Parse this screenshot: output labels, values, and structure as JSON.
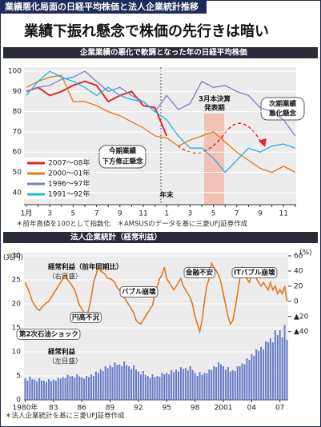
{
  "header": {
    "kicker": "業績悪化局面の日経平均株価と法人企業統計推移",
    "title": "業績下振れ懸念で株価の先行きは暗い"
  },
  "chart_data": [
    {
      "type": "line",
      "title": "企業業績の悪化で軟調となった年の日経平均株価",
      "categories": [
        "1月",
        null,
        "3",
        null,
        "5",
        null,
        "7",
        null,
        "9",
        null,
        "11",
        null,
        "1",
        null,
        "3",
        null,
        "5",
        null,
        "7",
        null,
        "9",
        null,
        "11",
        null
      ],
      "series": [
        {
          "name": "2007～08年",
          "color": "#e6232a",
          "values": [
            90,
            92,
            88,
            90,
            93,
            95,
            93,
            85,
            88,
            90,
            83,
            82,
            68,
            null,
            null,
            null,
            null,
            null,
            null,
            null,
            null,
            null,
            null,
            null
          ]
        },
        {
          "name": "2000～01年",
          "color": "#e07b1e",
          "values": [
            92,
            95,
            97,
            98,
            85,
            85,
            83,
            80,
            78,
            75,
            72,
            68,
            67,
            63,
            66,
            68,
            70,
            65,
            60,
            56,
            52,
            50,
            53,
            50
          ]
        },
        {
          "name": "1996～97年",
          "color": "#7b7fc4",
          "values": [
            90,
            92,
            93,
            96,
            97,
            100,
            95,
            90,
            92,
            88,
            85,
            80,
            88,
            81,
            84,
            95,
            92,
            93,
            90,
            88,
            82,
            80,
            76,
            68
          ]
        },
        {
          "name": "1991～92年",
          "color": "#1fb5e0",
          "values": [
            88,
            95,
            100,
            97,
            95,
            92,
            88,
            92,
            88,
            86,
            85,
            80,
            76,
            68,
            62,
            62,
            57,
            50,
            56,
            62,
            60,
            63,
            64,
            62
          ]
        }
      ],
      "ylim": [
        34,
        102
      ],
      "yticks": [
        40,
        50,
        60,
        70,
        80,
        90,
        100
      ],
      "annotations": [
        "3月本決算",
        "発表期",
        "今期業績",
        "下方修正懸念",
        "次期業績",
        "悪化懸念",
        "年末"
      ],
      "note": "＊前年高値を100として指数化　＊AMSUSのデータを基に三菱UFJ証券作成"
    },
    {
      "type": "bar",
      "title": "法人企業統計（経常利益）",
      "categories": [
        "1980年",
        null,
        null,
        null,
        null,
        null,
        null,
        null,
        null,
        null,
        null,
        null,
        "83",
        null,
        null,
        null,
        null,
        null,
        null,
        null,
        null,
        null,
        null,
        null,
        "86",
        null,
        null,
        null,
        null,
        null,
        null,
        null,
        null,
        null,
        null,
        null,
        "89",
        null,
        null,
        null,
        null,
        null,
        null,
        null,
        null,
        null,
        null,
        null,
        "92",
        null,
        null,
        null,
        null,
        null,
        null,
        null,
        null,
        null,
        null,
        null,
        "95",
        null,
        null,
        null,
        null,
        null,
        null,
        null,
        null,
        null,
        null,
        null,
        "98",
        null,
        null,
        null,
        null,
        null,
        null,
        null,
        null,
        null,
        null,
        null,
        "2001",
        null,
        null,
        null,
        null,
        null,
        null,
        null,
        null,
        null,
        null,
        null,
        "04",
        null,
        null,
        null,
        null,
        null,
        null,
        null,
        null,
        null,
        null,
        null,
        "07",
        null,
        null,
        null
      ],
      "series": [
        {
          "name": "経常利益",
          "scale_note": "（左目盛）",
          "type": "bar",
          "color": "#6b7fc8",
          "values": [
            4.5,
            4.0,
            4.8,
            4.3,
            4.2,
            3.8,
            4.5,
            4.0,
            4.0,
            3.7,
            4.3,
            3.9,
            4.2,
            4.0,
            4.6,
            4.4,
            4.8,
            4.5,
            5.2,
            4.9,
            5.0,
            4.6,
            5.3,
            4.9,
            4.7,
            4.4,
            5.0,
            4.8,
            5.3,
            5.0,
            5.9,
            5.6,
            6.4,
            6.0,
            7.0,
            6.6,
            7.2,
            6.8,
            7.8,
            7.3,
            7.4,
            7.0,
            8.0,
            7.2,
            7.0,
            6.4,
            7.2,
            6.3,
            5.9,
            5.3,
            6.0,
            5.2,
            5.0,
            4.6,
            5.3,
            4.7,
            5.0,
            4.8,
            5.6,
            5.3,
            5.6,
            5.3,
            6.2,
            5.8,
            6.3,
            5.9,
            6.8,
            6.4,
            6.6,
            6.1,
            7.0,
            6.2,
            5.6,
            5.0,
            5.8,
            5.2,
            5.6,
            5.5,
            6.3,
            6.2,
            7.0,
            6.8,
            7.8,
            7.4,
            7.0,
            6.2,
            6.8,
            5.9,
            6.2,
            6.0,
            7.0,
            7.0,
            7.6,
            7.4,
            8.6,
            8.3,
            9.5,
            9.2,
            10.5,
            10.2,
            11.0,
            10.5,
            12.2,
            12.0,
            12.8,
            12.0,
            14.5,
            13.5,
            14.5,
            13.0,
            15.6,
            12.5
          ]
        },
        {
          "name": "経常利益（前年同期比）",
          "scale_note": "（右目盛）",
          "type": "line",
          "axis": "y2",
          "color": "#e07b1e",
          "values": [
            25,
            18,
            10,
            0,
            -5,
            -10,
            -12,
            -8,
            -5,
            -2,
            0,
            5,
            10,
            15,
            20,
            25,
            30,
            35,
            28,
            25,
            20,
            15,
            5,
            -5,
            -10,
            -15,
            -20,
            -10,
            5,
            25,
            35,
            45,
            40,
            38,
            35,
            30,
            30,
            28,
            25,
            18,
            15,
            10,
            5,
            0,
            -5,
            -10,
            -15,
            -25,
            -28,
            -30,
            -25,
            -20,
            -15,
            -10,
            -5,
            10,
            20,
            30,
            35,
            45,
            30,
            25,
            20,
            15,
            20,
            25,
            30,
            20,
            15,
            10,
            5,
            -5,
            -20,
            -30,
            -40,
            -25,
            0,
            20,
            30,
            50,
            45,
            40,
            35,
            25,
            10,
            -5,
            -20,
            -30,
            -25,
            -10,
            10,
            30,
            45,
            40,
            30,
            25,
            35,
            40,
            30,
            25,
            20,
            25,
            20,
            15,
            25,
            15,
            20,
            10,
            15,
            10,
            20,
            0
          ]
        }
      ],
      "ylim": [
        0,
        30
      ],
      "yticks": [
        0,
        5,
        10,
        15,
        20,
        25,
        30
      ],
      "ylabel": "(兆円)",
      "y2lim": [
        -130,
        60
      ],
      "y2ticks": [
        60,
        40,
        20,
        0,
        {
          "value": -20,
          "label": "▲20"
        },
        {
          "value": -40,
          "label": "▲40"
        }
      ],
      "y2label": "(%)",
      "annotations": [
        "円高不況",
        "第2次石油ショック",
        "バブル崩壊",
        "金融不安",
        "ITバブル崩壊"
      ],
      "note": "＊法人企業統計を基に三菱UFJ証券作成"
    }
  ]
}
